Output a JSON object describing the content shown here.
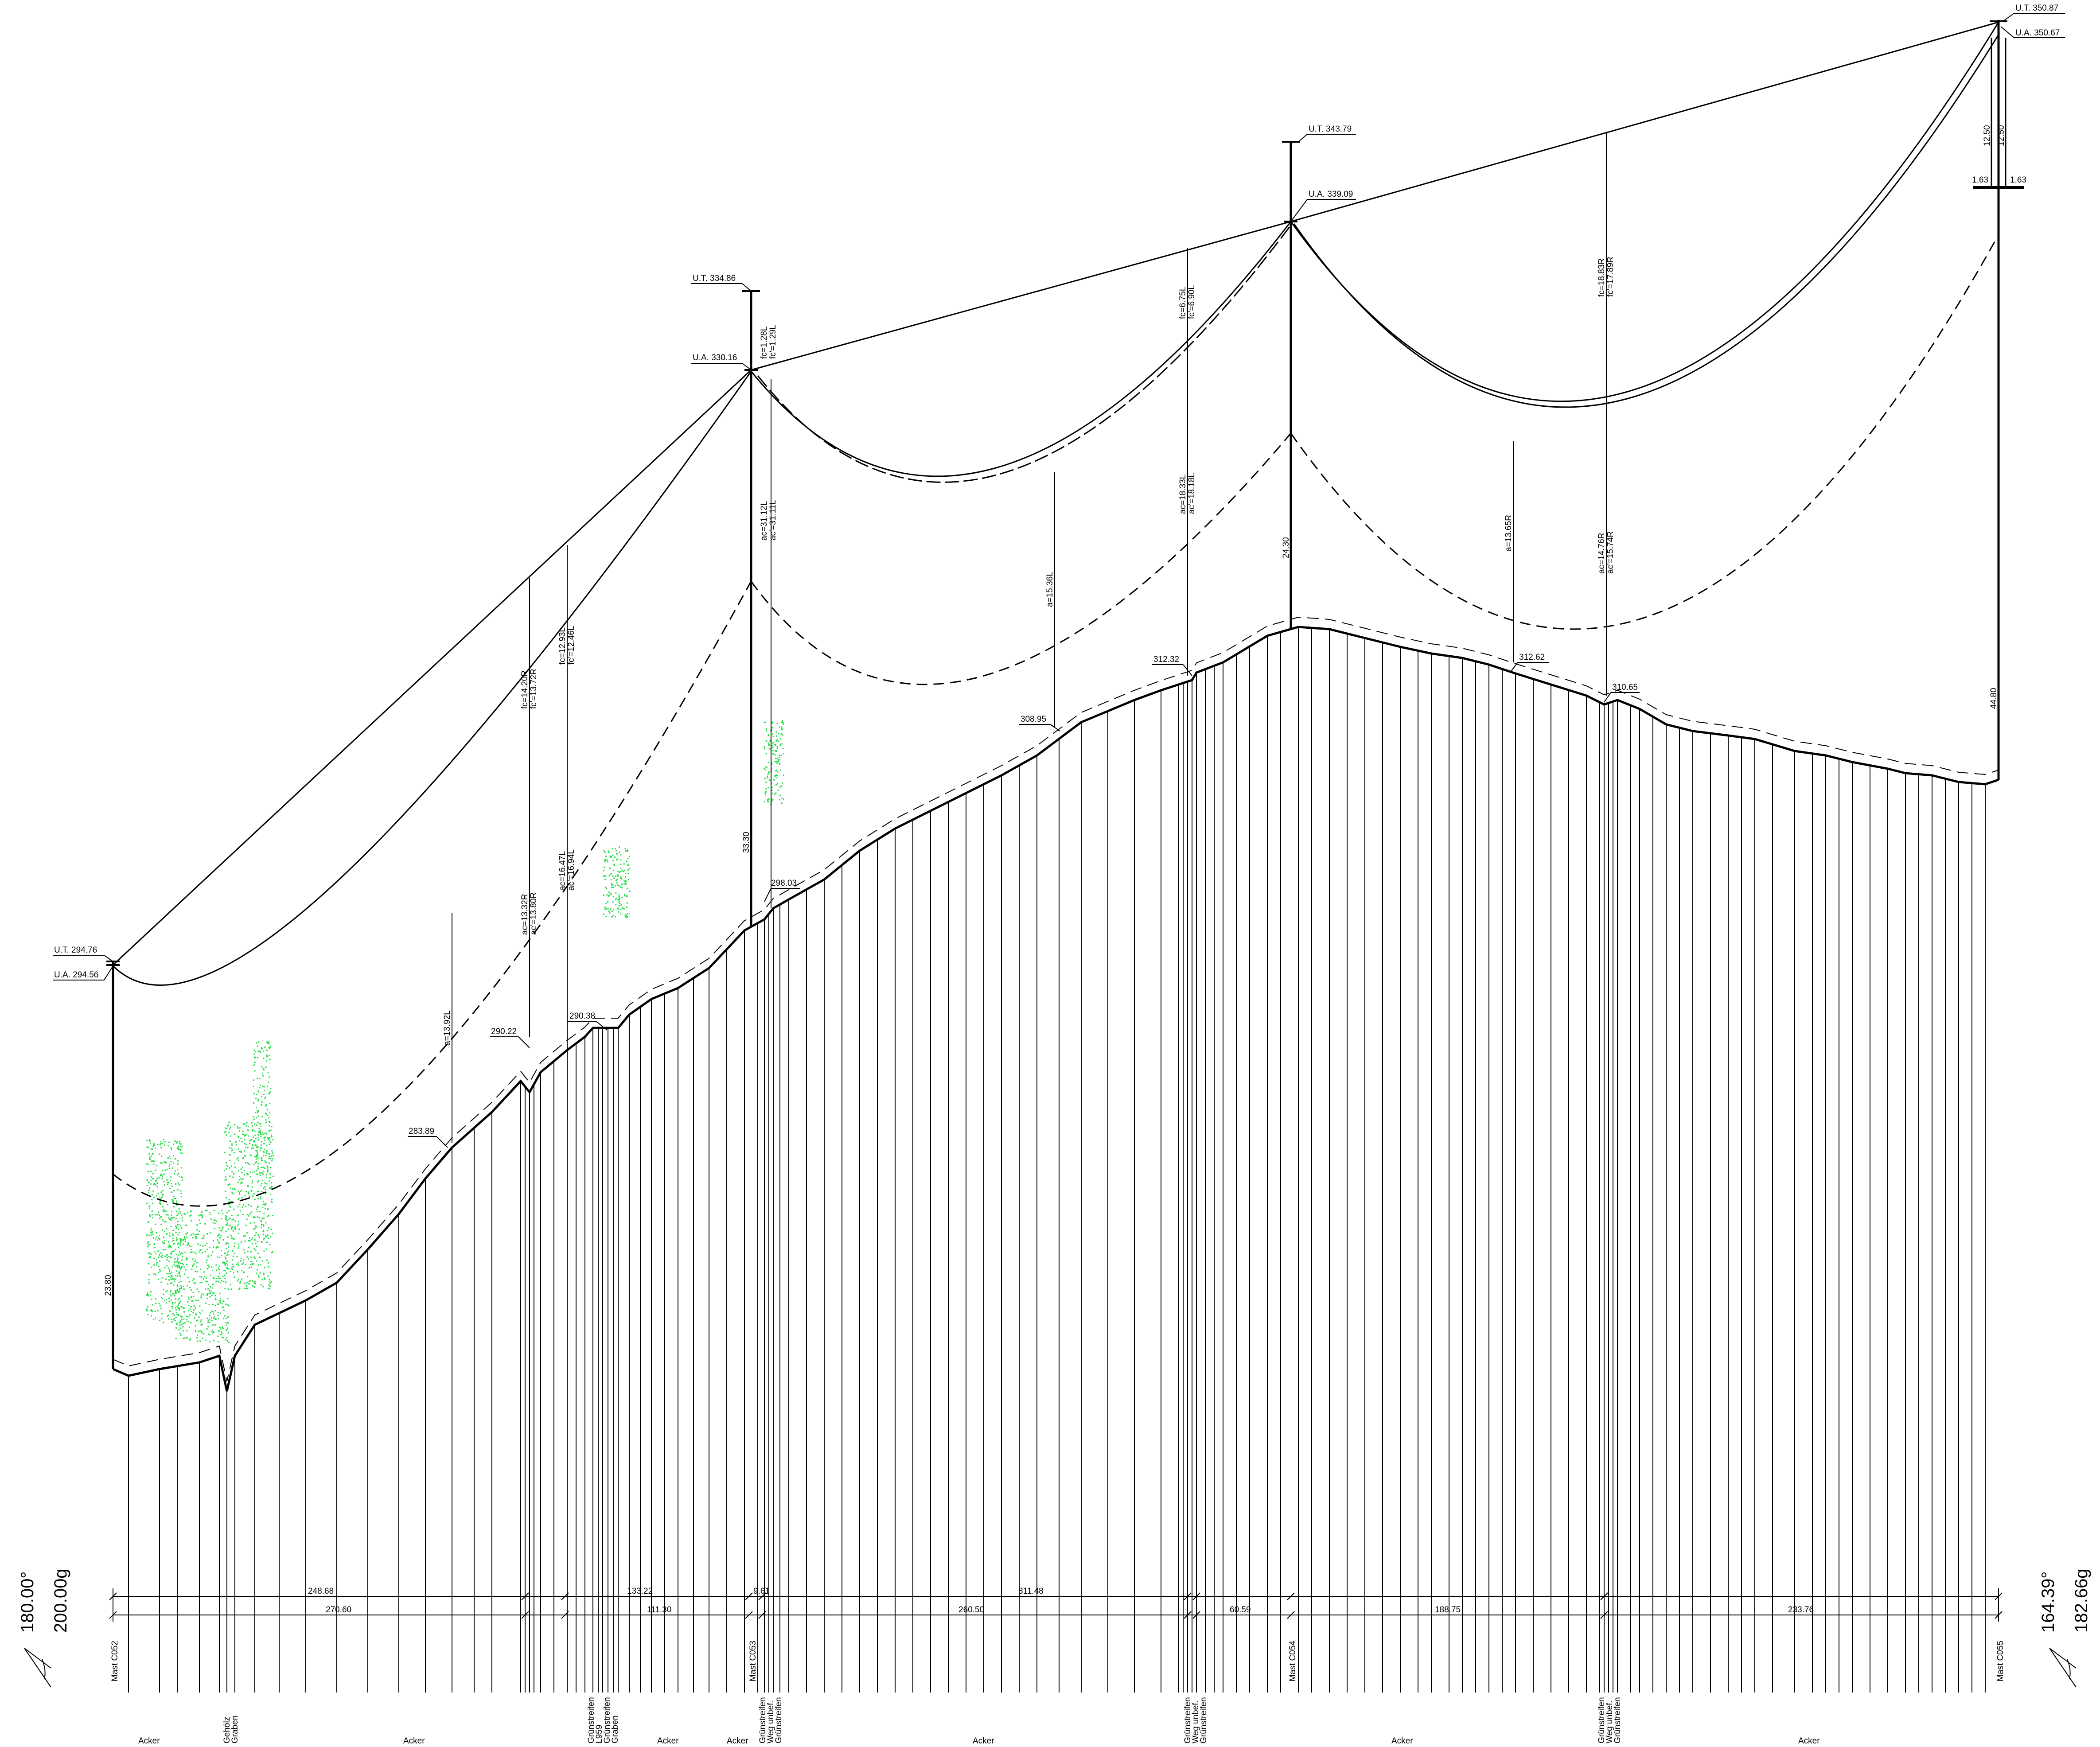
{
  "drawing": {
    "type": "overhead line longitudinal profile",
    "colors": {
      "line": "#000000",
      "vegetation": "#22dd44",
      "background": "#ffffff"
    },
    "masts": [
      {
        "name": "Mast C052",
        "ut": "U.T. 294.76",
        "ua": "U.A. 294.56",
        "height": "23.80"
      },
      {
        "name": "Mast C053",
        "ut": "U.T. 334.86",
        "ua": "U.A. 330.16",
        "height": "33.30"
      },
      {
        "name": "Mast C054",
        "ut": "U.T. 343.79",
        "ua": "U.A. 339.09",
        "height": "24.30"
      },
      {
        "name": "Mast C055",
        "ut": "U.T. 350.87",
        "ua": "U.A. 350.67",
        "height": "44.80",
        "arm_top": "12.50",
        "arm_side": "12.50",
        "offset_left": "1.63",
        "offset_right": "1.63"
      }
    ],
    "elevations": [
      "283.89",
      "290.22",
      "290.38",
      "298.03",
      "308.95",
      "312.32",
      "312.62",
      "310.65"
    ],
    "clearances": [
      "a=13.92L",
      "ac=13.32R",
      "ac'=13.80R",
      "fc=14.20R",
      "fc'=13.72R",
      "ac=16.47L",
      "ac'=16.94L",
      "fc=12.93L",
      "fc'=12.46L",
      "fc=1.28L",
      "fc'=1.29L",
      "ac=31.12L",
      "ac'=31.11L",
      "a=15.36L",
      "fc=6.75L",
      "fc'=6.90L",
      "ac=18.33L",
      "ac'=18.18L",
      "a=13.65R",
      "fc=18.83R",
      "fc'=17.89R",
      "ac=14.76R",
      "ac'=15.74R"
    ],
    "dimensions_upper": [
      "248.68",
      "133.22",
      "9.61",
      "311.48",
      "60.59"
    ],
    "dimensions_lower": [
      "270.60",
      "111.30",
      "260.50",
      "188.75",
      "233.76"
    ],
    "crossings": {
      "c1": [
        "Gehölz",
        "Graben"
      ],
      "c2": [
        "Grünstreifen",
        "L959",
        "Grünstreifen",
        "Graben"
      ],
      "c3": [
        "Grünstreifen",
        "Weg unbef.",
        "Grünstreifen"
      ],
      "c4": [
        "Grünstreifen",
        "Weg unbef.",
        "Grünstreifen"
      ],
      "c5": [
        "Grünstreifen",
        "Weg unbef.",
        "Grünstreifen"
      ]
    },
    "land_use": [
      "Acker",
      "Acker",
      "Acker",
      "Acker",
      "Acker",
      "Acker",
      "Acker"
    ],
    "angles": {
      "left_deg": "180.00°",
      "left_gon": "200.00g",
      "right_deg": "164.39°",
      "right_gon": "182.66g"
    }
  }
}
